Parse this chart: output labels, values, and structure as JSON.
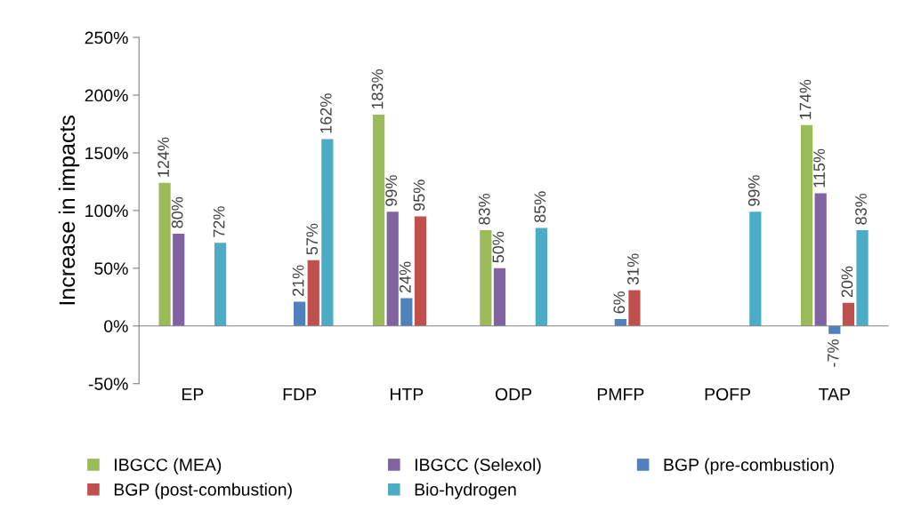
{
  "chart_data": {
    "type": "bar",
    "ylabel": "Increase in impacts",
    "categories": [
      "EP",
      "FDP",
      "HTP",
      "ODP",
      "PMFP",
      "POFP",
      "TAP"
    ],
    "series": [
      {
        "name": "IBGCC (MEA)",
        "color": "#9bbb59",
        "values": [
          124,
          null,
          183,
          83,
          null,
          null,
          174
        ],
        "value_labels": [
          "124%",
          null,
          "183%",
          "83%",
          null,
          null,
          "174%"
        ]
      },
      {
        "name": "IBGCC (Selexol)",
        "color": "#8064a2",
        "values": [
          80,
          null,
          99,
          50,
          null,
          null,
          115
        ],
        "value_labels": [
          "80%",
          null,
          "99%",
          "50%",
          null,
          null,
          "115%"
        ]
      },
      {
        "name": "BGP (pre-combustion)",
        "color": "#4f81bd",
        "values": [
          null,
          21,
          24,
          null,
          6,
          null,
          -7
        ],
        "value_labels": [
          null,
          "21%",
          "24%",
          null,
          "6%",
          null,
          "-7%"
        ]
      },
      {
        "name": "BGP (post-combustion)",
        "color": "#c0504d",
        "values": [
          null,
          57,
          95,
          null,
          31,
          null,
          20
        ],
        "value_labels": [
          null,
          "57%",
          "95%",
          null,
          "31%",
          null,
          "20%"
        ]
      },
      {
        "name": "Bio-hydrogen",
        "color": "#4bacc6",
        "values": [
          72,
          162,
          null,
          85,
          null,
          99,
          83
        ],
        "value_labels": [
          "72%",
          "162%",
          null,
          "85%",
          null,
          "99%",
          "83%"
        ]
      }
    ],
    "ylim": [
      -50,
      250
    ],
    "yticks": [
      {
        "value": -50,
        "label": "-50%"
      },
      {
        "value": 0,
        "label": "0%"
      },
      {
        "value": 50,
        "label": "50%"
      },
      {
        "value": 100,
        "label": "100%"
      },
      {
        "value": 150,
        "label": "150%"
      },
      {
        "value": 200,
        "label": "200%"
      },
      {
        "value": 250,
        "label": "250%"
      }
    ],
    "legend": "bottom"
  }
}
